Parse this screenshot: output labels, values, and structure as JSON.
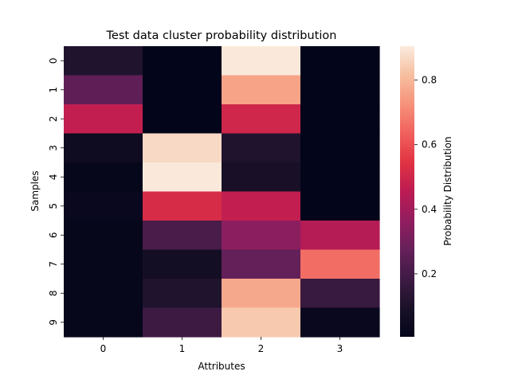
{
  "chart_data": {
    "type": "heatmap",
    "title": "Test data cluster probability distribution",
    "xlabel": "Attributes",
    "ylabel": "Samples",
    "x_categories": [
      "0",
      "1",
      "2",
      "3"
    ],
    "y_categories": [
      "0",
      "1",
      "2",
      "3",
      "4",
      "5",
      "6",
      "7",
      "8",
      "9"
    ],
    "values": [
      [
        0.11,
        0.005,
        0.9,
        0.005
      ],
      [
        0.26,
        0.005,
        0.76,
        0.005
      ],
      [
        0.47,
        0.005,
        0.5,
        0.005
      ],
      [
        0.05,
        0.87,
        0.11,
        0.005
      ],
      [
        0.02,
        0.9,
        0.09,
        0.005
      ],
      [
        0.03,
        0.52,
        0.47,
        0.005
      ],
      [
        0.02,
        0.21,
        0.35,
        0.44
      ],
      [
        0.02,
        0.07,
        0.27,
        0.66
      ],
      [
        0.02,
        0.11,
        0.77,
        0.17
      ],
      [
        0.02,
        0.18,
        0.84,
        0.03
      ]
    ],
    "colorbar": {
      "label": "Probability Distribution",
      "range": [
        0.005,
        0.905
      ],
      "ticks": [
        0.2,
        0.4,
        0.6,
        0.8
      ],
      "tick_labels": [
        "0.2",
        "0.4",
        "0.6",
        "0.8"
      ],
      "colormap": "rocket",
      "colormap_stops": [
        "#03051a",
        "#1a1128",
        "#3e1b44",
        "#66205a",
        "#921d5f",
        "#bc1b53",
        "#e13342",
        "#f1605d",
        "#f6927a",
        "#f6be9f",
        "#faebdd"
      ]
    },
    "grid": false
  }
}
